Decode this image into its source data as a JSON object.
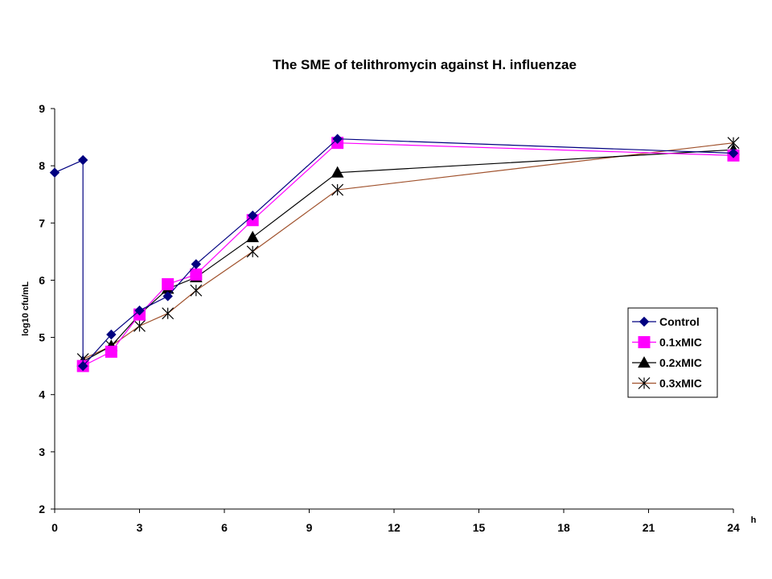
{
  "chart_data": {
    "type": "line",
    "title": "The SME of telithromycin against H. influenzae",
    "xlabel": "h",
    "ylabel": "log10 cfu/mL",
    "xlim": [
      0,
      24
    ],
    "ylim": [
      2,
      9
    ],
    "x_ticks": [
      0,
      3,
      6,
      9,
      12,
      15,
      18,
      21,
      24
    ],
    "y_ticks": [
      2,
      3,
      4,
      5,
      6,
      7,
      8,
      9
    ],
    "grid": false,
    "legend_position": "right",
    "series": [
      {
        "name": "Control",
        "color": "#000080",
        "marker": "diamond",
        "x": [
          0,
          1,
          1,
          2,
          3,
          4,
          5,
          7,
          10,
          24
        ],
        "y": [
          7.88,
          8.1,
          4.5,
          5.05,
          5.47,
          5.72,
          6.28,
          7.13,
          8.47,
          8.22
        ]
      },
      {
        "name": "0.1xMIC",
        "color": "#ff00ff",
        "marker": "square",
        "x": [
          1,
          2,
          3,
          4,
          5,
          7,
          10,
          24
        ],
        "y": [
          4.5,
          4.75,
          5.4,
          5.93,
          6.1,
          7.05,
          8.4,
          8.18
        ]
      },
      {
        "name": "0.2xMIC",
        "color": "#000000",
        "marker": "triangle",
        "x": [
          1,
          2,
          3,
          4,
          5,
          7,
          10,
          24
        ],
        "y": [
          4.58,
          4.85,
          5.4,
          5.85,
          6.05,
          6.75,
          7.88,
          8.28
        ]
      },
      {
        "name": "0.3xMIC",
        "color": "#a0522d",
        "marker": "asterisk",
        "x": [
          1,
          2,
          3,
          4,
          5,
          7,
          10,
          24
        ],
        "y": [
          4.62,
          4.85,
          5.2,
          5.42,
          5.82,
          6.5,
          7.58,
          8.4
        ]
      }
    ]
  }
}
